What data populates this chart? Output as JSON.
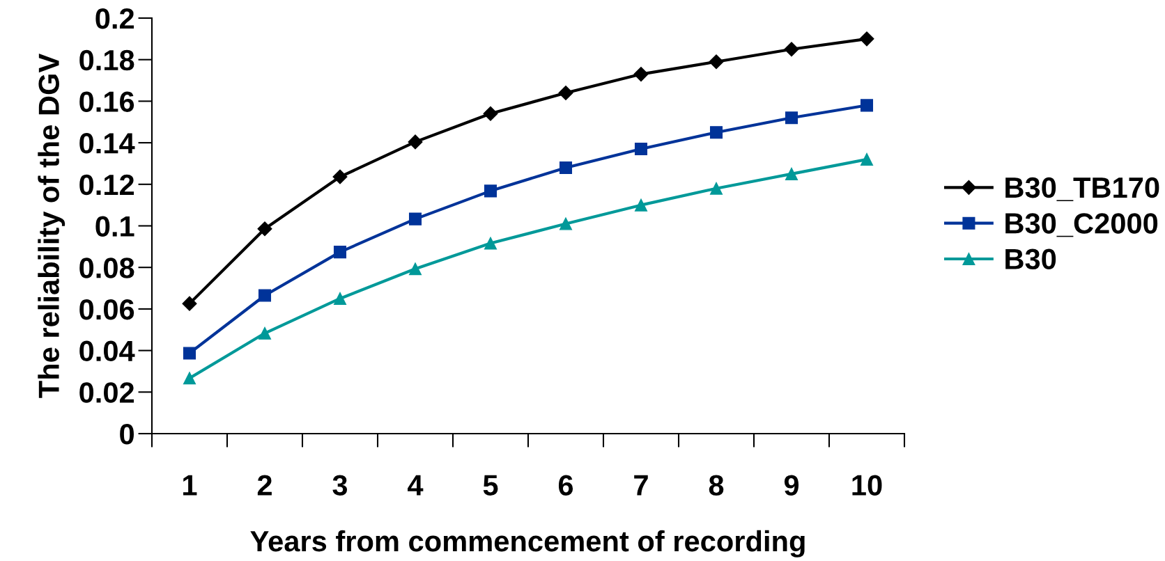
{
  "chart_data": {
    "type": "line",
    "xlabel": "Years from commencement of recording",
    "ylabel": "The reliability of the DGV",
    "categories": [
      "1",
      "2",
      "3",
      "4",
      "5",
      "6",
      "7",
      "8",
      "9",
      "10"
    ],
    "series": [
      {
        "name": "B30_TB170",
        "color": "#000000",
        "marker": "diamond",
        "values": [
          0.0626,
          0.0986,
          0.1236,
          0.1404,
          0.154,
          0.164,
          0.173,
          0.179,
          0.185,
          0.19
        ]
      },
      {
        "name": "B30_C2000",
        "color": "#003399",
        "marker": "square",
        "values": [
          0.0387,
          0.0665,
          0.0874,
          0.1033,
          0.1168,
          0.128,
          0.137,
          0.145,
          0.152,
          0.158
        ]
      },
      {
        "name": "B30",
        "color": "#009999",
        "marker": "triangle",
        "values": [
          0.0267,
          0.0483,
          0.065,
          0.0793,
          0.0916,
          0.101,
          0.11,
          0.118,
          0.125,
          0.132
        ]
      }
    ],
    "ylim": [
      0,
      0.2
    ],
    "yticks": [
      0,
      0.02,
      0.04,
      0.06,
      0.08,
      0.1,
      0.12,
      0.14,
      0.16,
      0.18,
      0.2
    ],
    "grid": false,
    "legend": "right",
    "line_style": "solid"
  }
}
